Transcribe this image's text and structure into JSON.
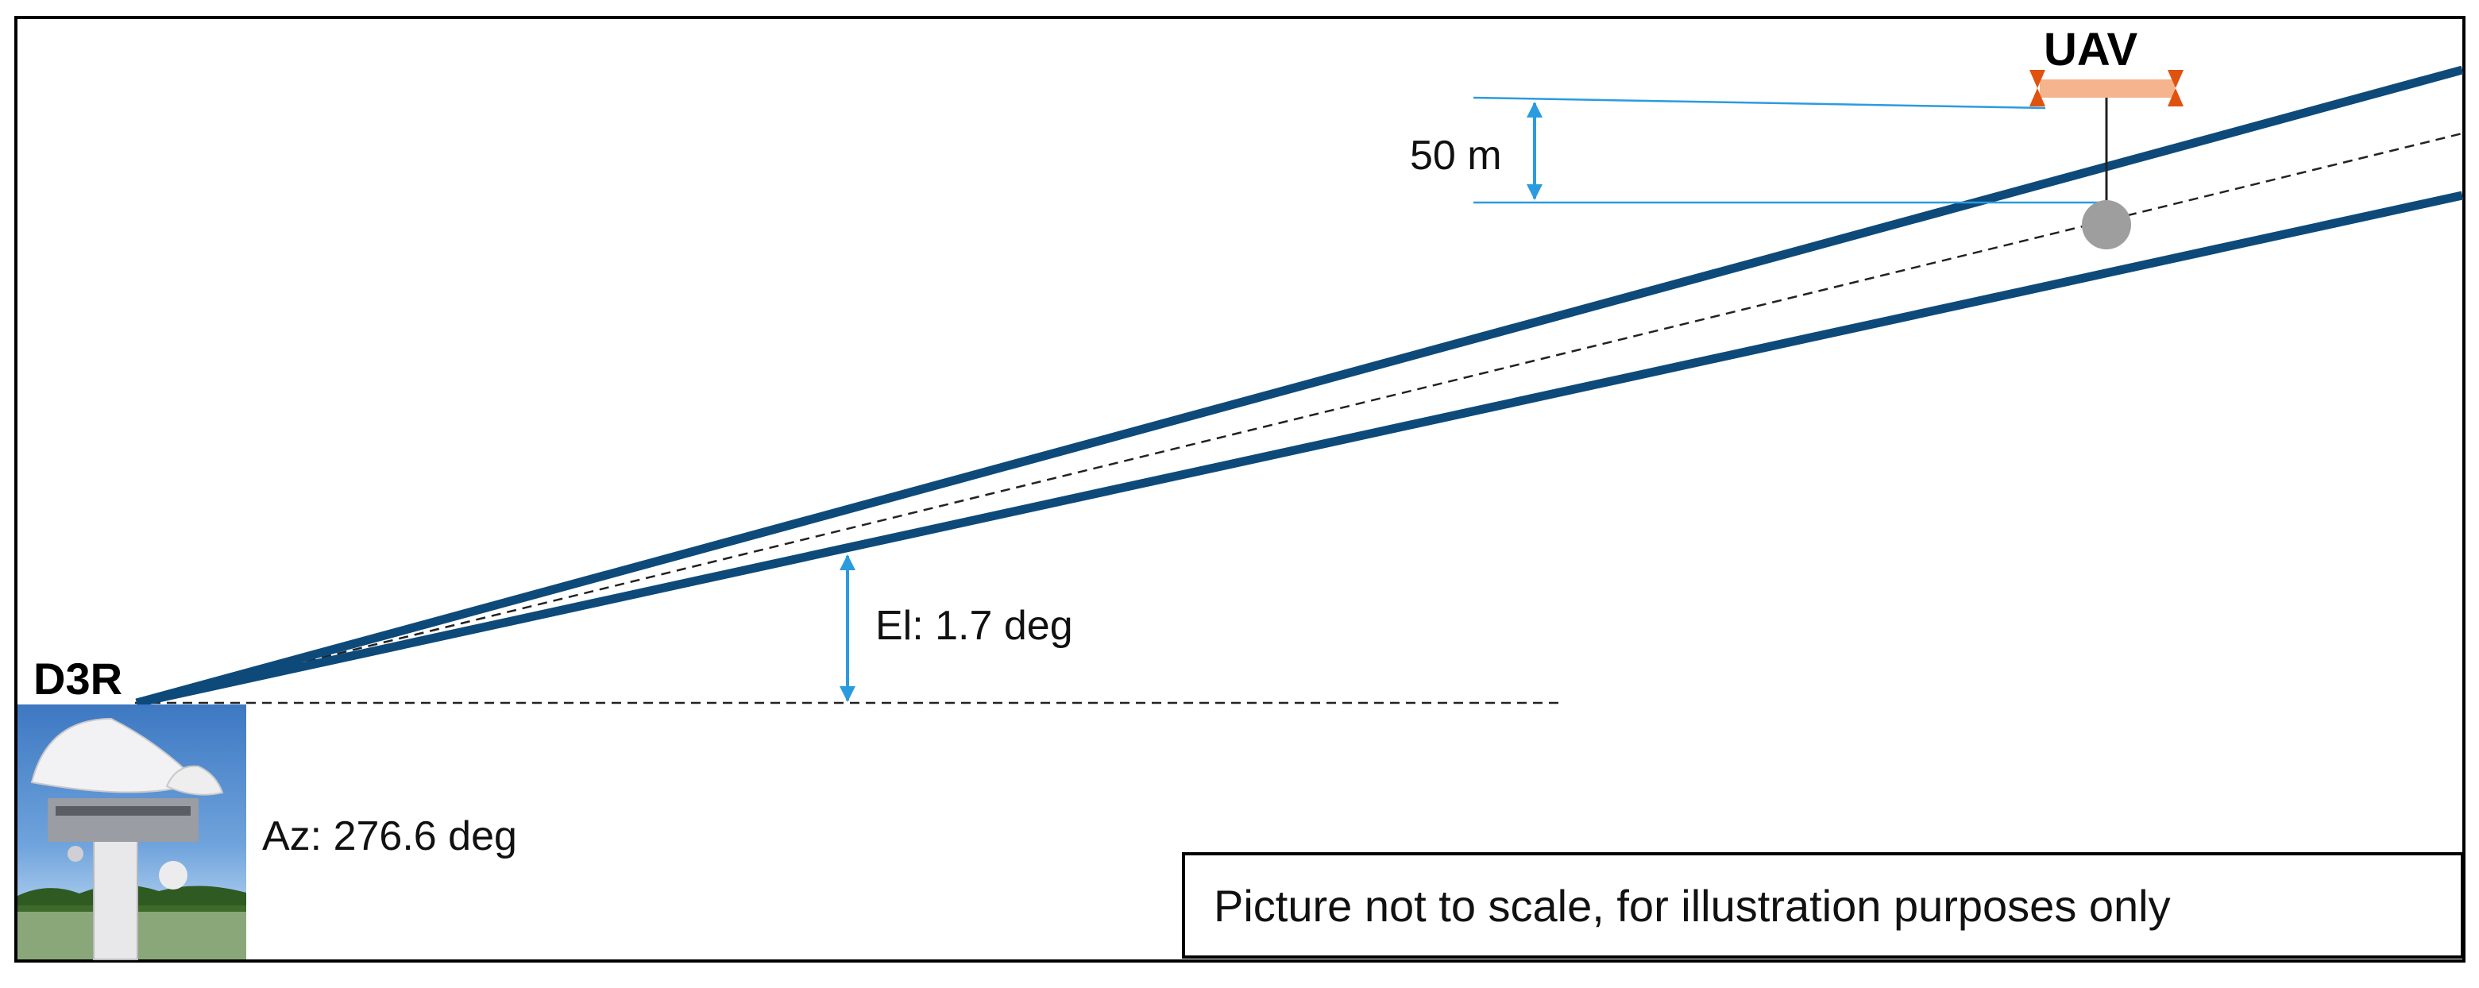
{
  "radar": {
    "name": "D3R",
    "azimuth_label": "Az: 276.6 deg"
  },
  "target": {
    "name": "UAV"
  },
  "annotations": {
    "height_offset": "50 m",
    "elevation": "El: 1.7 deg",
    "disclaimer": "Picture not to scale, for illustration purposes only"
  },
  "colors": {
    "beam": "#0d4a7a",
    "dimension": "#2b9be0",
    "uav_body": "#f5b48e",
    "uav_wing": "#e0520f",
    "scatterer": "#9e9e9e",
    "frame": "#000000"
  },
  "icons": {
    "radar_photo": "radar-dish-photo",
    "scatterer": "sphere-target-icon",
    "uav": "uav-icon"
  }
}
